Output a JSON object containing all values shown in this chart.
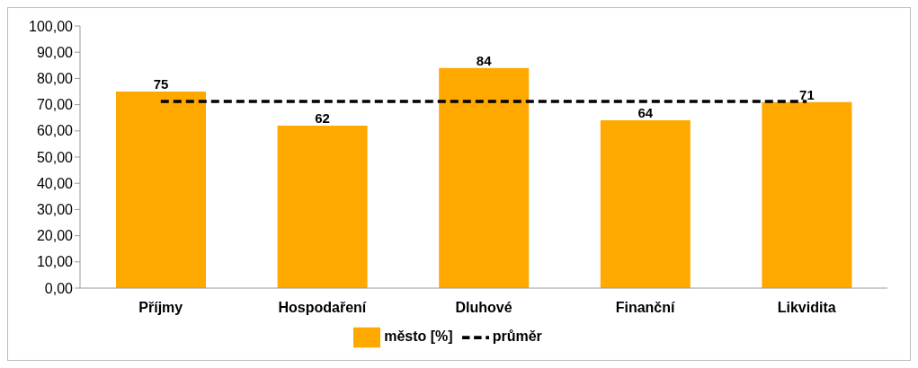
{
  "chart_data": {
    "type": "bar",
    "categories": [
      "Příjmy",
      "Hospodaření",
      "Dluhové",
      "Finanční",
      "Likvidita"
    ],
    "series": [
      {
        "name": "město [%]",
        "color": "#ffa800",
        "values": [
          75,
          62,
          84,
          64,
          71
        ],
        "data_labels": true
      },
      {
        "name": "průměr",
        "type": "line",
        "color": "#000000",
        "values": [
          71.2,
          71.2,
          71.2,
          71.2,
          71.2
        ],
        "line_style": "dashed",
        "marker": "none"
      }
    ],
    "ylim": [
      0,
      100
    ],
    "yticks": [
      {
        "value": 0,
        "label": "0,00"
      },
      {
        "value": 10,
        "label": "10,00"
      },
      {
        "value": 20,
        "label": "20,00"
      },
      {
        "value": 30,
        "label": "30,00"
      },
      {
        "value": 40,
        "label": "40,00"
      },
      {
        "value": 50,
        "label": "50,00"
      },
      {
        "value": 60,
        "label": "60,00"
      },
      {
        "value": 70,
        "label": "70,00"
      },
      {
        "value": 80,
        "label": "80,00"
      },
      {
        "value": 90,
        "label": "90,00"
      },
      {
        "value": 100,
        "label": "100,00"
      }
    ],
    "grid": false,
    "legend": "bottom"
  }
}
